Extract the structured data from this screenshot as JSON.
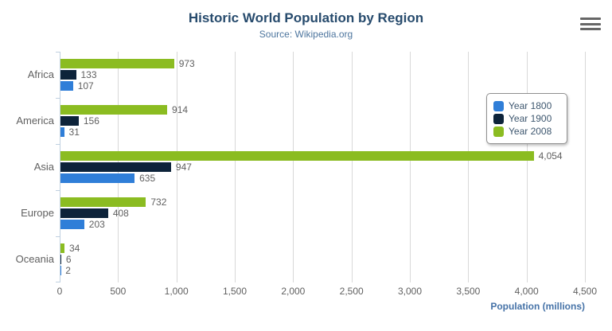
{
  "header": {
    "title": "Historic World Population by Region",
    "subtitle": "Source: Wikipedia.org"
  },
  "toolbar": {
    "export_menu_icon": "hamburger-icon"
  },
  "colors": {
    "title": "#274b6d",
    "subtitle": "#4d759e",
    "axis_labels": "#606060",
    "axis_title": "#4572a7",
    "gridline": "#d8d8d8",
    "axis_line": "#c0d0e0",
    "legend_border": "#909090",
    "year_1800": "#2f7ed8",
    "year_1900": "#0d233a",
    "year_2008": "#8bbc21"
  },
  "chart_data": {
    "type": "bar",
    "orientation": "horizontal",
    "title": "Historic World Population by Region",
    "subtitle": "Source: Wikipedia.org",
    "categories": [
      "Africa",
      "America",
      "Asia",
      "Europe",
      "Oceania"
    ],
    "series": [
      {
        "name": "Year 1800",
        "color": "#2f7ed8",
        "values": [
          107,
          31,
          635,
          203,
          2
        ]
      },
      {
        "name": "Year 1900",
        "color": "#0d233a",
        "values": [
          133,
          156,
          947,
          408,
          6
        ]
      },
      {
        "name": "Year 2008",
        "color": "#8bbc21",
        "values": [
          973,
          914,
          4054,
          732,
          34
        ]
      }
    ],
    "bar_order_top_to_bottom": [
      "Year 2008",
      "Year 1900",
      "Year 1800"
    ],
    "data_labels_shown": true,
    "xlabel": "Population (millions)",
    "ylabel": "",
    "xlim": [
      0,
      4500
    ],
    "xticks": [
      "0",
      "500",
      "1,000",
      "1,500",
      "2,000",
      "2,500",
      "3,000",
      "3,500",
      "4,000",
      "4,500"
    ],
    "grid": true,
    "legend": {
      "position": "right-middle",
      "items": [
        "Year 1800",
        "Year 1900",
        "Year 2008"
      ]
    }
  }
}
